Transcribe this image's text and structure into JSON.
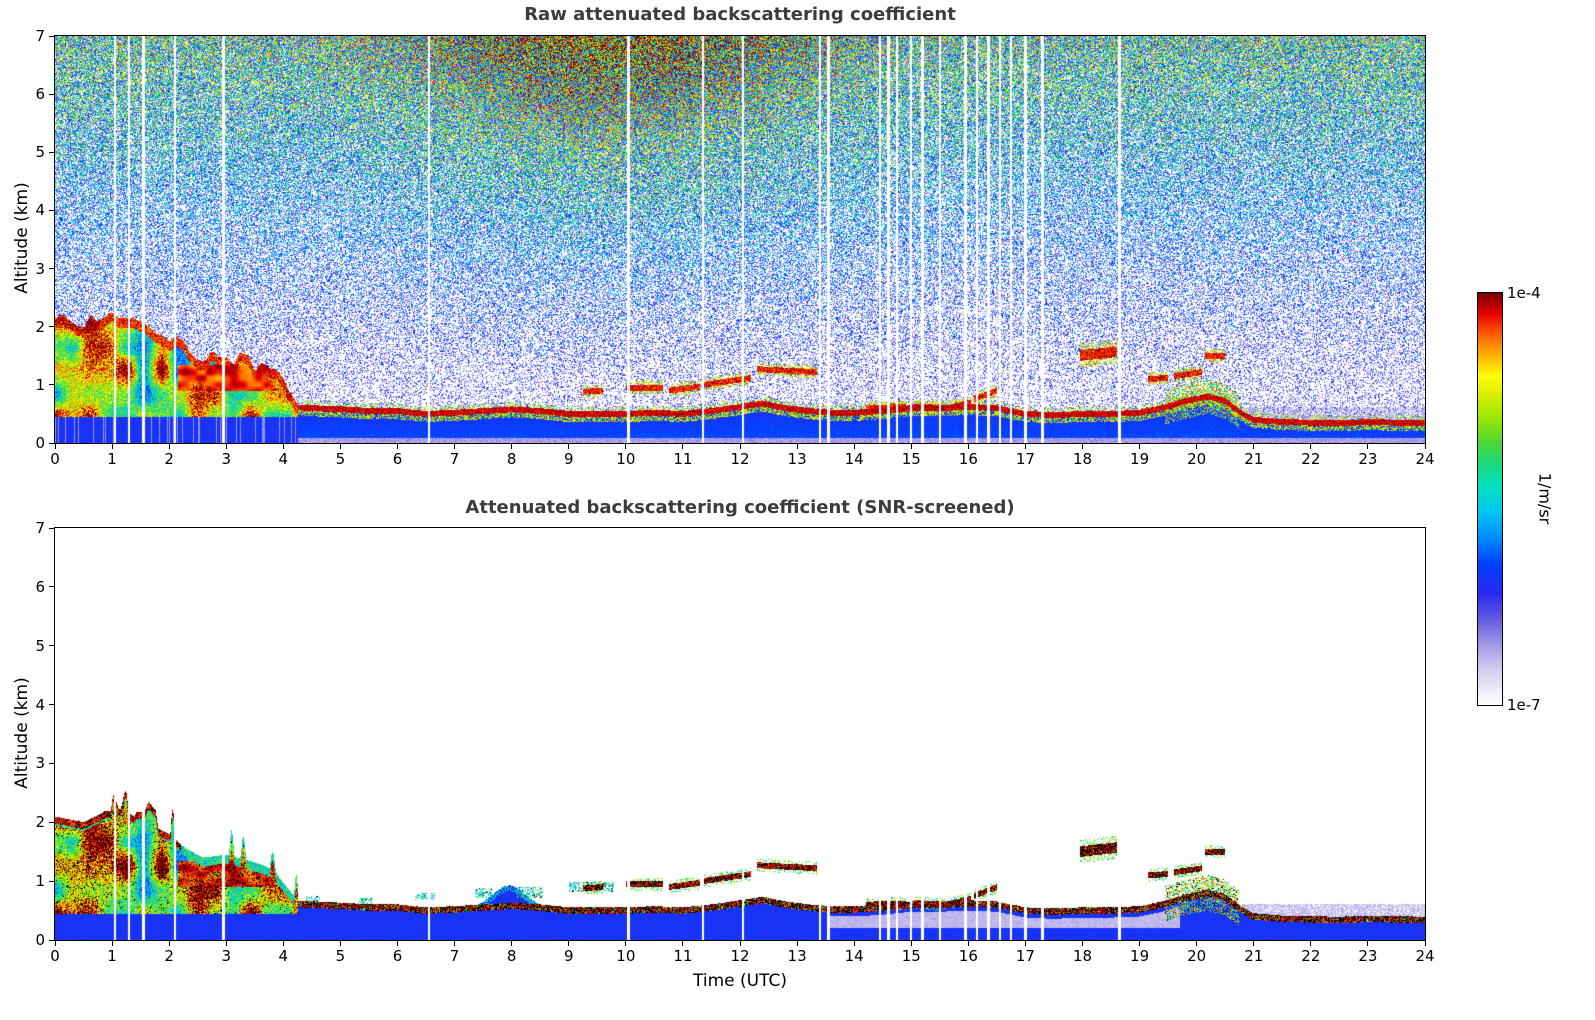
{
  "chart_data": {
    "type": "heatmap",
    "panels": [
      {
        "title": "Raw attenuated backscattering coefficient",
        "xlabel": "",
        "ylabel": "Altitude (km)",
        "xlim": [
          0,
          24
        ],
        "ylim": [
          0,
          7
        ],
        "xticks": [
          0,
          1,
          2,
          3,
          4,
          5,
          6,
          7,
          8,
          9,
          10,
          11,
          12,
          13,
          14,
          15,
          16,
          17,
          18,
          19,
          20,
          21,
          22,
          23,
          24
        ],
        "yticks": [
          0,
          1,
          2,
          3,
          4,
          5,
          6,
          7
        ]
      },
      {
        "title": "Attenuated backscattering coefficient (SNR-screened)",
        "xlabel": "Time (UTC)",
        "ylabel": "Altitude (km)",
        "xlim": [
          0,
          24
        ],
        "ylim": [
          0,
          7
        ],
        "xticks": [
          0,
          1,
          2,
          3,
          4,
          5,
          6,
          7,
          8,
          9,
          10,
          11,
          12,
          13,
          14,
          15,
          16,
          17,
          18,
          19,
          20,
          21,
          22,
          23,
          24
        ],
        "yticks": [
          0,
          1,
          2,
          3,
          4,
          5,
          6,
          7
        ]
      }
    ],
    "colorbar": {
      "max_label": "1e-4",
      "min_label": "1e-7",
      "unit": "1/m/sr",
      "scale": "log",
      "stops": [
        [
          0.0,
          "#ffffff"
        ],
        [
          0.04,
          "#ece9f8"
        ],
        [
          0.09,
          "#cfc9f0"
        ],
        [
          0.14,
          "#a79ee8"
        ],
        [
          0.2,
          "#6a62e0"
        ],
        [
          0.27,
          "#2a2af0"
        ],
        [
          0.34,
          "#0040ff"
        ],
        [
          0.41,
          "#0090ff"
        ],
        [
          0.47,
          "#00c8f0"
        ],
        [
          0.53,
          "#00e0c0"
        ],
        [
          0.59,
          "#20d878"
        ],
        [
          0.64,
          "#50d830"
        ],
        [
          0.7,
          "#a0e800"
        ],
        [
          0.76,
          "#e0f000"
        ],
        [
          0.8,
          "#ffff00"
        ],
        [
          0.85,
          "#ffb000"
        ],
        [
          0.9,
          "#ff6000"
        ],
        [
          0.95,
          "#e80000"
        ],
        [
          1.0,
          "#7a0000"
        ]
      ]
    },
    "features": {
      "layer_top_km": [
        [
          0,
          2.0
        ],
        [
          0.3,
          1.85
        ],
        [
          0.6,
          1.95
        ],
        [
          0.9,
          2.1
        ],
        [
          1.2,
          2.05
        ],
        [
          1.5,
          1.85
        ],
        [
          1.8,
          1.75
        ],
        [
          2.1,
          1.45
        ],
        [
          2.3,
          1.2
        ],
        [
          2.6,
          1.1
        ],
        [
          3.0,
          1.15
        ],
        [
          3.4,
          1.2
        ],
        [
          3.7,
          1.1
        ],
        [
          3.85,
          1.0
        ],
        [
          3.95,
          0.7
        ],
        [
          4.1,
          0.62
        ],
        [
          4.5,
          0.6
        ],
        [
          5.0,
          0.58
        ],
        [
          5.5,
          0.55
        ],
        [
          6.0,
          0.55
        ],
        [
          6.5,
          0.5
        ],
        [
          7.0,
          0.52
        ],
        [
          7.5,
          0.55
        ],
        [
          8.0,
          0.58
        ],
        [
          8.5,
          0.55
        ],
        [
          9.0,
          0.5
        ],
        [
          9.5,
          0.5
        ],
        [
          10.0,
          0.5
        ],
        [
          10.5,
          0.52
        ],
        [
          11.0,
          0.5
        ],
        [
          11.5,
          0.55
        ],
        [
          12.0,
          0.62
        ],
        [
          12.4,
          0.68
        ],
        [
          12.8,
          0.6
        ],
        [
          13.2,
          0.55
        ],
        [
          13.6,
          0.52
        ],
        [
          14.0,
          0.52
        ],
        [
          14.5,
          0.55
        ],
        [
          15.0,
          0.6
        ],
        [
          15.5,
          0.6
        ],
        [
          16.0,
          0.62
        ],
        [
          16.5,
          0.6
        ],
        [
          17.0,
          0.5
        ],
        [
          17.5,
          0.48
        ],
        [
          18.0,
          0.5
        ],
        [
          18.5,
          0.5
        ],
        [
          19.0,
          0.52
        ],
        [
          19.4,
          0.6
        ],
        [
          19.8,
          0.72
        ],
        [
          20.2,
          0.8
        ],
        [
          20.5,
          0.72
        ],
        [
          20.8,
          0.5
        ],
        [
          21.0,
          0.4
        ],
        [
          21.5,
          0.36
        ],
        [
          22.0,
          0.35
        ],
        [
          22.5,
          0.34
        ],
        [
          23.0,
          0.36
        ],
        [
          23.5,
          0.35
        ],
        [
          24,
          0.34
        ]
      ],
      "plume_top_km": [
        [
          0,
          2.1
        ],
        [
          0.5,
          2.0
        ],
        [
          0.9,
          2.2
        ],
        [
          1.3,
          2.15
        ],
        [
          1.7,
          1.95
        ],
        [
          2.0,
          1.8
        ],
        [
          2.3,
          1.55
        ],
        [
          2.6,
          1.4
        ],
        [
          3.0,
          1.45
        ],
        [
          3.4,
          1.35
        ],
        [
          3.7,
          1.25
        ],
        [
          3.9,
          1.1
        ],
        [
          4.1,
          0.85
        ],
        [
          4.25,
          0.7
        ]
      ],
      "plume_end_hour": 4.25,
      "red_band": {
        "t": [
          2.15,
          3.88
        ],
        "z": [
          0.9,
          1.35
        ]
      },
      "clouds": [
        [
          9.25,
          9.6,
          0.88,
          0.9,
          0.05
        ],
        [
          10.0,
          10.65,
          0.95,
          0.95,
          0.05
        ],
        [
          10.75,
          11.3,
          0.9,
          0.97,
          0.05
        ],
        [
          11.35,
          12.2,
          1.0,
          1.12,
          0.05
        ],
        [
          12.3,
          13.35,
          1.27,
          1.22,
          0.05
        ],
        [
          14.2,
          14.9,
          0.6,
          0.62,
          0.05
        ],
        [
          15.05,
          15.6,
          0.63,
          0.6,
          0.05
        ],
        [
          15.7,
          16.05,
          0.62,
          0.7,
          0.05
        ],
        [
          16.1,
          16.5,
          0.75,
          0.9,
          0.05
        ],
        [
          17.95,
          18.6,
          1.5,
          1.57,
          0.09
        ],
        [
          19.15,
          19.5,
          1.1,
          1.12,
          0.05
        ],
        [
          19.6,
          20.1,
          1.15,
          1.22,
          0.05
        ],
        [
          20.15,
          20.5,
          1.5,
          1.5,
          0.05
        ]
      ],
      "wisps": [
        [
          4.4,
          4.65,
          0.62,
          0.75
        ],
        [
          5.3,
          5.55,
          0.6,
          0.72
        ],
        [
          6.3,
          6.65,
          0.68,
          0.8
        ],
        [
          7.35,
          7.65,
          0.72,
          0.88
        ],
        [
          8.1,
          8.55,
          0.72,
          0.9
        ],
        [
          9.0,
          9.8,
          0.82,
          0.98
        ]
      ],
      "gap_columns_hours": [
        1.05,
        1.3,
        1.55,
        2.1,
        2.95,
        6.55,
        10.05,
        11.35,
        12.05,
        13.4,
        13.55,
        14.45,
        14.6,
        14.75,
        15.0,
        15.2,
        15.5,
        15.95,
        16.15,
        16.35,
        16.55,
        16.75,
        17.0,
        17.3,
        18.65
      ],
      "solar_noise": {
        "peak_hour": 9.8,
        "sigma_hours": 3.4
      },
      "lavender_band": {
        "t": [
          13.55,
          19.7
        ],
        "z_min": 0.2
      },
      "haze_after_hour": 20.8,
      "haze_top_km": 0.62,
      "blob_zone": [
        19.45,
        20.75
      ],
      "bulge": {
        "center_hour": 7.95,
        "sigma": 0.4,
        "amp_km": 0.35
      },
      "seed": 42
    }
  }
}
